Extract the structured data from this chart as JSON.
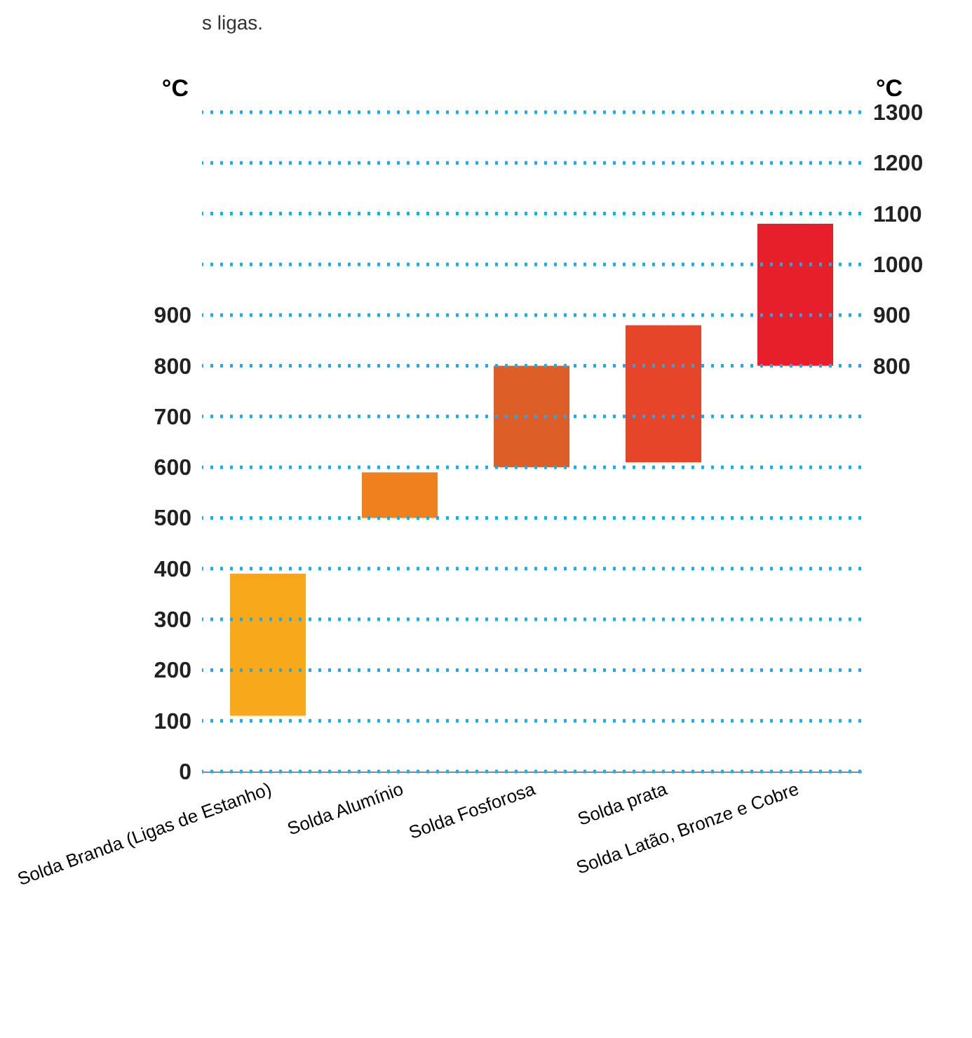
{
  "chart_data": {
    "type": "bar",
    "categories": [
      "Solda Branda (Ligas de Estanho)",
      "Solda Alumínio",
      "Solda Fosforosa",
      "Solda prata",
      "Solda Latão, Bronze e Cobre"
    ],
    "base": [
      110,
      500,
      600,
      610,
      800
    ],
    "values": [
      280,
      90,
      200,
      270,
      280
    ],
    "colors": [
      "#f7a81b",
      "#f0801e",
      "#dd5f27",
      "#e6452a",
      "#e61f2a"
    ],
    "ylabel": "°C",
    "y2label": "°C",
    "ylim": [
      0,
      1300
    ],
    "yticks": [
      0,
      100,
      200,
      300,
      400,
      500,
      600,
      700,
      800,
      900
    ],
    "y2lim": [
      0,
      1300
    ],
    "y2ticks": [
      800,
      900,
      1000,
      1100,
      1200,
      1300
    ],
    "grid": "y",
    "annotations": [
      "s ligas."
    ]
  }
}
